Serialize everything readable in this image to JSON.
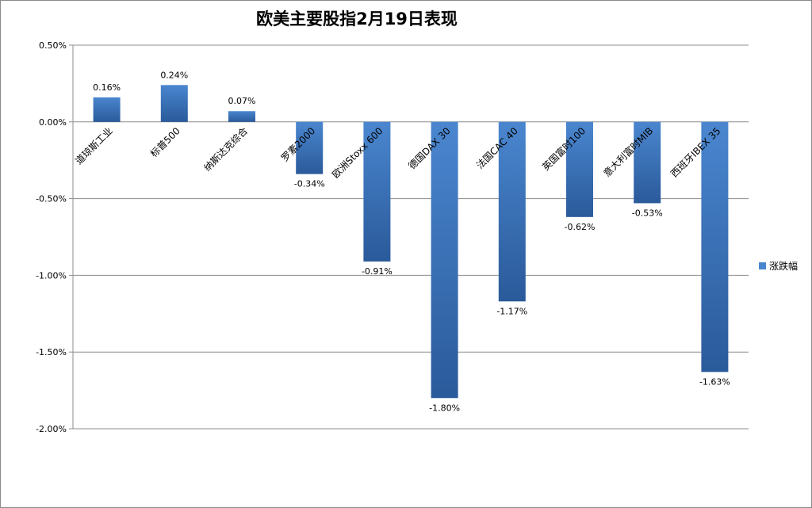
{
  "chart_data": {
    "type": "bar",
    "title": "欧美主要股指2月19日表现",
    "categories": [
      "道琼斯工业",
      "标普500",
      "纳斯达克综合",
      "罗素2000",
      "欧洲Stoxx 600",
      "德国DAX 30",
      "法国CAC 40",
      "英国富时100",
      "意大利富时MIB",
      "西班牙IBEX 35"
    ],
    "series": [
      {
        "name": "涨跌幅",
        "values": [
          0.16,
          0.24,
          0.07,
          -0.34,
          -0.91,
          -1.8,
          -1.17,
          -0.62,
          -0.53,
          -1.63
        ]
      }
    ],
    "data_labels": [
      "0.16%",
      "0.24%",
      "0.07%",
      "-0.34%",
      "-0.91%",
      "-1.80%",
      "-1.17%",
      "-0.62%",
      "-0.53%",
      "-1.63%"
    ],
    "yticks": [
      0.5,
      0,
      -0.5,
      -1.0,
      -1.5,
      -2.0
    ],
    "ytick_labels": [
      "0.50%",
      "0.00%",
      "-0.50%",
      "-1.00%",
      "-1.50%",
      "-2.00%"
    ],
    "ylim": [
      -2.0,
      0.5
    ],
    "grid": true,
    "legend": "right",
    "colors": {
      "bar_top": "#4a86cf",
      "bar_bottom": "#2a5a9a",
      "gridline": "#8c8c8c"
    }
  }
}
